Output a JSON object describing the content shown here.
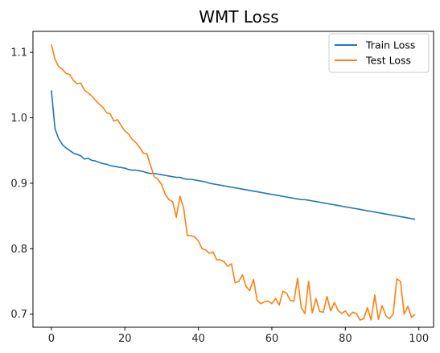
{
  "chart_data": {
    "type": "line",
    "title": "WMT Loss",
    "xlabel": "",
    "ylabel": "",
    "xlim": [
      -5,
      104
    ],
    "ylim": [
      0.68,
      1.132
    ],
    "xticks": [
      0,
      20,
      40,
      60,
      80,
      100
    ],
    "yticks": [
      0.7,
      0.8,
      0.9,
      1.0,
      1.1
    ],
    "xtick_labels": [
      "0",
      "20",
      "40",
      "60",
      "80",
      "100"
    ],
    "ytick_labels": [
      "0.7",
      "0.8",
      "0.9",
      "1.0",
      "1.1"
    ],
    "grid": false,
    "legend_position": "top-right",
    "series": [
      {
        "name": "Train Loss",
        "color": "#1f77b4",
        "x": [
          0,
          1,
          2,
          3,
          4,
          5,
          6,
          7,
          8,
          9,
          10,
          11,
          12,
          13,
          14,
          15,
          16,
          17,
          18,
          19,
          20,
          21,
          22,
          23,
          24,
          25,
          26,
          27,
          28,
          29,
          30,
          31,
          32,
          33,
          34,
          35,
          36,
          37,
          38,
          39,
          40,
          41,
          42,
          43,
          44,
          45,
          46,
          47,
          48,
          49,
          50,
          51,
          52,
          53,
          54,
          55,
          56,
          57,
          58,
          59,
          60,
          61,
          62,
          63,
          64,
          65,
          66,
          67,
          68,
          69,
          70,
          71,
          72,
          73,
          74,
          75,
          76,
          77,
          78,
          79,
          80,
          81,
          82,
          83,
          84,
          85,
          86,
          87,
          88,
          89,
          90,
          91,
          92,
          93,
          94,
          95,
          96,
          97,
          98,
          99
        ],
        "values": [
          1.042,
          0.983,
          0.968,
          0.959,
          0.954,
          0.95,
          0.946,
          0.944,
          0.942,
          0.937,
          0.938,
          0.935,
          0.934,
          0.932,
          0.93,
          0.929,
          0.927,
          0.926,
          0.925,
          0.924,
          0.923,
          0.921,
          0.92,
          0.92,
          0.919,
          0.918,
          0.916,
          0.915,
          0.915,
          0.914,
          0.913,
          0.912,
          0.911,
          0.91,
          0.909,
          0.909,
          0.907,
          0.906,
          0.906,
          0.905,
          0.904,
          0.903,
          0.902,
          0.9,
          0.899,
          0.898,
          0.897,
          0.896,
          0.895,
          0.894,
          0.893,
          0.892,
          0.891,
          0.89,
          0.889,
          0.888,
          0.887,
          0.886,
          0.885,
          0.884,
          0.883,
          0.882,
          0.881,
          0.88,
          0.879,
          0.878,
          0.877,
          0.876,
          0.875,
          0.875,
          0.874,
          0.873,
          0.872,
          0.871,
          0.87,
          0.869,
          0.868,
          0.867,
          0.866,
          0.865,
          0.864,
          0.863,
          0.862,
          0.861,
          0.86,
          0.859,
          0.858,
          0.857,
          0.856,
          0.855,
          0.854,
          0.853,
          0.852,
          0.851,
          0.85,
          0.849,
          0.848,
          0.847,
          0.846,
          0.845
        ]
      },
      {
        "name": "Test Loss",
        "color": "#ff7f0e",
        "x": [
          0,
          1,
          2,
          3,
          4,
          5,
          6,
          7,
          8,
          9,
          10,
          11,
          12,
          13,
          14,
          15,
          16,
          17,
          18,
          19,
          20,
          21,
          22,
          23,
          24,
          25,
          26,
          27,
          28,
          29,
          30,
          31,
          32,
          33,
          34,
          35,
          36,
          37,
          38,
          39,
          40,
          41,
          42,
          43,
          44,
          45,
          46,
          47,
          48,
          49,
          50,
          51,
          52,
          53,
          54,
          55,
          56,
          57,
          58,
          59,
          60,
          61,
          62,
          63,
          64,
          65,
          66,
          67,
          68,
          69,
          70,
          71,
          72,
          73,
          74,
          75,
          76,
          77,
          78,
          79,
          80,
          81,
          82,
          83,
          84,
          85,
          86,
          87,
          88,
          89,
          90,
          91,
          92,
          93,
          94,
          95,
          96,
          97,
          98,
          99
        ],
        "values": [
          1.112,
          1.089,
          1.078,
          1.074,
          1.068,
          1.066,
          1.057,
          1.052,
          1.053,
          1.042,
          1.038,
          1.033,
          1.027,
          1.021,
          1.016,
          1.008,
          1.006,
          0.995,
          0.997,
          0.988,
          0.98,
          0.975,
          0.967,
          0.962,
          0.955,
          0.946,
          0.945,
          0.927,
          0.91,
          0.906,
          0.898,
          0.883,
          0.875,
          0.872,
          0.848,
          0.88,
          0.862,
          0.82,
          0.82,
          0.818,
          0.812,
          0.8,
          0.798,
          0.793,
          0.795,
          0.783,
          0.783,
          0.78,
          0.773,
          0.777,
          0.748,
          0.75,
          0.76,
          0.742,
          0.736,
          0.753,
          0.721,
          0.716,
          0.719,
          0.72,
          0.716,
          0.724,
          0.714,
          0.735,
          0.732,
          0.721,
          0.72,
          0.755,
          0.71,
          0.701,
          0.75,
          0.702,
          0.724,
          0.704,
          0.703,
          0.727,
          0.705,
          0.718,
          0.706,
          0.701,
          0.705,
          0.697,
          0.703,
          0.701,
          0.691,
          0.693,
          0.71,
          0.691,
          0.729,
          0.692,
          0.713,
          0.698,
          0.693,
          0.7,
          0.754,
          0.75,
          0.7,
          0.712,
          0.695,
          0.7
        ]
      }
    ]
  }
}
